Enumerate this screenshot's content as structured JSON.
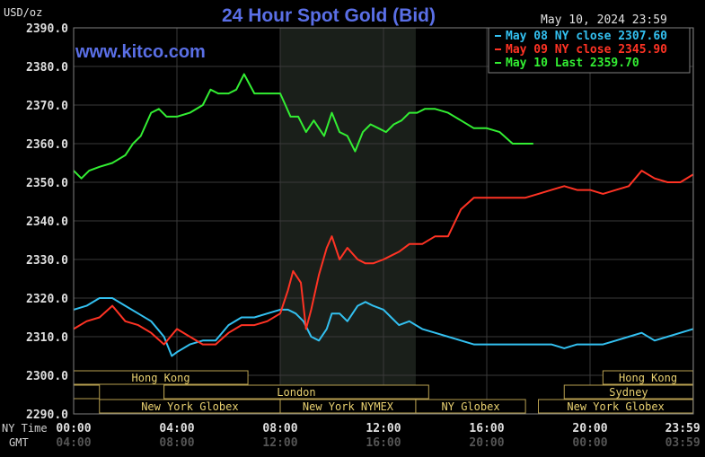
{
  "chart_data": {
    "type": "line",
    "title": "24 Hour Spot Gold (Bid)",
    "unit": "USD/oz",
    "brand": "www.kitco.com",
    "timestamp": "May 10, 2024 23:59",
    "ylim": [
      2290,
      2390
    ],
    "y_ticks": [
      "2390.0",
      "2380.0",
      "2370.0",
      "2360.0",
      "2350.0",
      "2340.0",
      "2330.0",
      "2320.0",
      "2310.0",
      "2300.0",
      "2290.0"
    ],
    "x_ticks_ny": [
      "00:00",
      "04:00",
      "08:00",
      "12:00",
      "16:00",
      "20:00",
      "23:59"
    ],
    "x_ticks_gmt": [
      "04:00",
      "08:00",
      "12:00",
      "16:00",
      "20:00",
      "00:00",
      "03:59"
    ],
    "row_labels": {
      "ny": "NY Time",
      "gmt": "GMT"
    },
    "grid": true,
    "legend_position": "top-right",
    "shaded_session_hours": [
      8,
      13.25
    ],
    "series": [
      {
        "name": "May 08 NY close 2307.60",
        "color": "#33c0f0",
        "x": [
          0,
          0.5,
          1,
          1.5,
          2,
          2.5,
          3,
          3.5,
          3.8,
          4,
          4.5,
          5,
          5.5,
          6,
          6.5,
          7,
          7.5,
          8,
          8.3,
          8.6,
          8.9,
          9.2,
          9.5,
          9.8,
          10,
          10.3,
          10.6,
          11,
          11.3,
          11.6,
          12,
          12.3,
          12.6,
          13,
          13.5,
          14,
          14.5,
          15,
          15.5,
          16,
          16.5,
          17,
          17.5,
          18,
          18.5,
          19,
          19.5,
          20,
          20.5,
          21,
          21.5,
          22,
          22.5,
          23,
          23.5,
          23.99
        ],
        "y": [
          2317,
          2318,
          2320,
          2320,
          2318,
          2316,
          2314,
          2310,
          2305,
          2306,
          2308,
          2309,
          2309,
          2313,
          2315,
          2315,
          2316,
          2317,
          2317,
          2316,
          2314,
          2310,
          2309,
          2312,
          2316,
          2316,
          2314,
          2318,
          2319,
          2318,
          2317,
          2315,
          2313,
          2314,
          2312,
          2311,
          2310,
          2309,
          2308,
          2308,
          2308,
          2308,
          2308,
          2308,
          2308,
          2307,
          2308,
          2308,
          2308,
          2309,
          2310,
          2311,
          2309,
          2310,
          2311,
          2312
        ]
      },
      {
        "name": "May 09 NY close 2345.90",
        "color": "#ff3324",
        "x": [
          0,
          0.5,
          1,
          1.5,
          2,
          2.5,
          3,
          3.5,
          4,
          4.5,
          5,
          5.5,
          6,
          6.5,
          7,
          7.5,
          8,
          8.3,
          8.5,
          8.8,
          9,
          9.2,
          9.5,
          9.8,
          10,
          10.3,
          10.6,
          11,
          11.3,
          11.6,
          12,
          12.3,
          12.6,
          13,
          13.5,
          14,
          14.5,
          15,
          15.5,
          16,
          16.5,
          17,
          17.5,
          18,
          18.5,
          19,
          19.5,
          20,
          20.5,
          21,
          21.5,
          22,
          22.5,
          23,
          23.5,
          23.99
        ],
        "y": [
          2312,
          2314,
          2315,
          2318,
          2314,
          2313,
          2311,
          2308,
          2312,
          2310,
          2308,
          2308,
          2311,
          2313,
          2313,
          2314,
          2316,
          2322,
          2327,
          2324,
          2312,
          2317,
          2326,
          2333,
          2336,
          2330,
          2333,
          2330,
          2329,
          2329,
          2330,
          2331,
          2332,
          2334,
          2334,
          2336,
          2336,
          2343,
          2346,
          2346,
          2346,
          2346,
          2346,
          2347,
          2348,
          2349,
          2348,
          2348,
          2347,
          2348,
          2349,
          2353,
          2351,
          2350,
          2350,
          2352
        ]
      },
      {
        "name": "May 10 Last 2359.70",
        "color": "#33ee33",
        "x": [
          0,
          0.3,
          0.6,
          1,
          1.5,
          2,
          2.3,
          2.6,
          3,
          3.3,
          3.6,
          4,
          4.5,
          5,
          5.3,
          5.6,
          6,
          6.3,
          6.6,
          7,
          7.3,
          7.6,
          8,
          8.2,
          8.4,
          8.7,
          9,
          9.3,
          9.5,
          9.7,
          10,
          10.3,
          10.6,
          10.9,
          11.2,
          11.5,
          11.8,
          12.1,
          12.4,
          12.7,
          13,
          13.3,
          13.6,
          14,
          14.5,
          15,
          15.5,
          16,
          16.5,
          17,
          17.5,
          17.8
        ],
        "y": [
          2353,
          2351,
          2353,
          2354,
          2355,
          2357,
          2360,
          2362,
          2368,
          2369,
          2367,
          2367,
          2368,
          2370,
          2374,
          2373,
          2373,
          2374,
          2378,
          2373,
          2373,
          2373,
          2373,
          2370,
          2367,
          2367,
          2363,
          2366,
          2364,
          2362,
          2368,
          2363,
          2362,
          2358,
          2363,
          2365,
          2364,
          2363,
          2365,
          2366,
          2368,
          2368,
          2369,
          2369,
          2368,
          2366,
          2364,
          2364,
          2363,
          2360,
          2360,
          2360
        ]
      }
    ],
    "sessions": [
      {
        "label": "Hong Kong",
        "start": 0,
        "end": 6.75,
        "row": 0
      },
      {
        "label": "",
        "start": 0,
        "end": 1,
        "row": 1
      },
      {
        "label": "",
        "start": 3.5,
        "end": 6.75,
        "row": 1
      },
      {
        "label": "London",
        "start": 3.5,
        "end": 13.75,
        "row": 1
      },
      {
        "label": "New York Globex",
        "start": 1,
        "end": 8,
        "row": 2
      },
      {
        "label": "New York NYMEX",
        "start": 8,
        "end": 13.25,
        "row": 2
      },
      {
        "label": "NY Globex",
        "start": 13.25,
        "end": 17.5,
        "row": 2
      },
      {
        "label": "Hong Kong",
        "start": 20.5,
        "end": 23.99,
        "row": 0
      },
      {
        "label": "Sydney",
        "start": 19,
        "end": 23.99,
        "row": 1
      },
      {
        "label": "New York Globex",
        "start": 18,
        "end": 23.99,
        "row": 2
      }
    ]
  }
}
